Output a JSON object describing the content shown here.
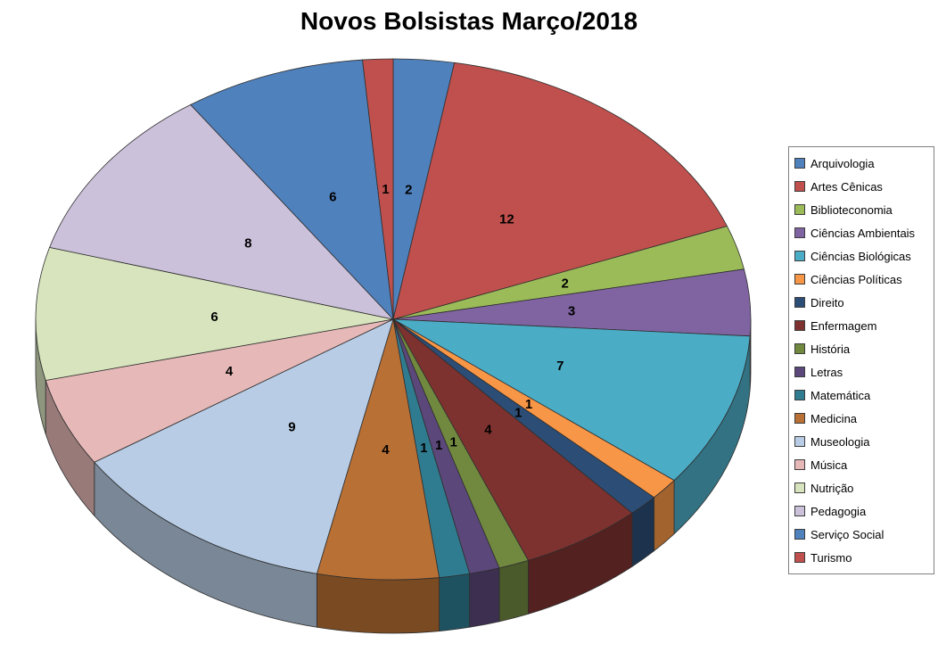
{
  "chart_data": {
    "type": "pie",
    "title": "Novos Bolsistas Março/2018",
    "effect": "3d",
    "legend_position": "right",
    "data_labels": "values",
    "slices": [
      {
        "label": "Arquivologia",
        "value": 2,
        "color": "#4F81BD"
      },
      {
        "label": "Artes Cênicas",
        "value": 12,
        "color": "#C0504D"
      },
      {
        "label": "Biblioteconomia",
        "value": 2,
        "color": "#9BBB59"
      },
      {
        "label": "Ciências Ambientais",
        "value": 3,
        "color": "#8064A2"
      },
      {
        "label": "Ciências Biológicas",
        "value": 7,
        "color": "#4BACC6"
      },
      {
        "label": "Ciências Políticas",
        "value": 1,
        "color": "#F79646"
      },
      {
        "label": "Direito",
        "value": 1,
        "color": "#2C4D75"
      },
      {
        "label": "Enfermagem",
        "value": 4,
        "color": "#7E322F"
      },
      {
        "label": "História",
        "value": 1,
        "color": "#71893F"
      },
      {
        "label": "Letras",
        "value": 1,
        "color": "#5B4779"
      },
      {
        "label": "Matemática",
        "value": 1,
        "color": "#2F7C91"
      },
      {
        "label": "Medicina",
        "value": 4,
        "color": "#B97034"
      },
      {
        "label": "Museologia",
        "value": 9,
        "color": "#B8CDE5"
      },
      {
        "label": "Música",
        "value": 4,
        "color": "#E6B9B8"
      },
      {
        "label": "Nutrição",
        "value": 6,
        "color": "#D7E4BD"
      },
      {
        "label": "Pedagogia",
        "value": 8,
        "color": "#CCC1DA"
      },
      {
        "label": "Serviço Social",
        "value": 6,
        "color": "#4F81BD"
      },
      {
        "label": "Turismo",
        "value": 1,
        "color": "#C0504D"
      }
    ]
  }
}
